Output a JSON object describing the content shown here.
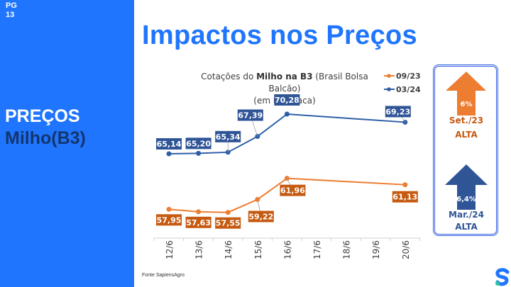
{
  "page": {
    "label": "PG",
    "number": "13"
  },
  "section": {
    "title": "PREÇOS",
    "subtitle": "Milho(B3)"
  },
  "header": {
    "title": "Impactos nos Preços"
  },
  "colors": {
    "brand_blue": "#1f75fe",
    "navy": "#13366e",
    "series_orange": "#ed7d31",
    "series_blue": "#2e5fa8",
    "label_orange": "#c55a11",
    "label_blue": "#2f5597"
  },
  "chart_data": {
    "type": "line",
    "title_parts": {
      "pre": "Cotações do ",
      "bold": "Milho na B3",
      "post": " (Brasil Bolsa Balcão)",
      "line2": "(em R$ / saca)"
    },
    "categories": [
      "12/6",
      "13/6",
      "14/6",
      "15/6",
      "16/6",
      "17/6",
      "18/6",
      "19/6",
      "20/6"
    ],
    "series": [
      {
        "name": "09/23",
        "color": "#ed7d31",
        "values": [
          57.95,
          57.63,
          57.55,
          59.22,
          61.96,
          null,
          null,
          null,
          61.13
        ],
        "labels": [
          "57,95",
          "57,63",
          "57,55",
          "59,22",
          "61,96",
          null,
          null,
          null,
          "61,13"
        ]
      },
      {
        "name": "03/24",
        "color": "#2e5fa8",
        "values": [
          65.14,
          65.2,
          65.34,
          67.39,
          70.28,
          null,
          null,
          null,
          69.23
        ],
        "labels": [
          "65,14",
          "65,20",
          "65,34",
          "67,39",
          "70,28",
          null,
          null,
          null,
          "69,23"
        ]
      }
    ],
    "legend_position": "top-right",
    "grid": false,
    "xlabel": "",
    "ylabel": "R$ / saca"
  },
  "side_panel": {
    "items": [
      {
        "percent": "6%",
        "period": "Set./23",
        "status": "ALTA",
        "color": "#ed7d31",
        "text_color": "#c55a11"
      },
      {
        "percent": "6,4%",
        "period": "Mar./24",
        "status": "ALTA",
        "color": "#2f5597",
        "text_color": "#2f5597"
      }
    ]
  },
  "footer": {
    "source": "Fonte SapiensAgro"
  }
}
